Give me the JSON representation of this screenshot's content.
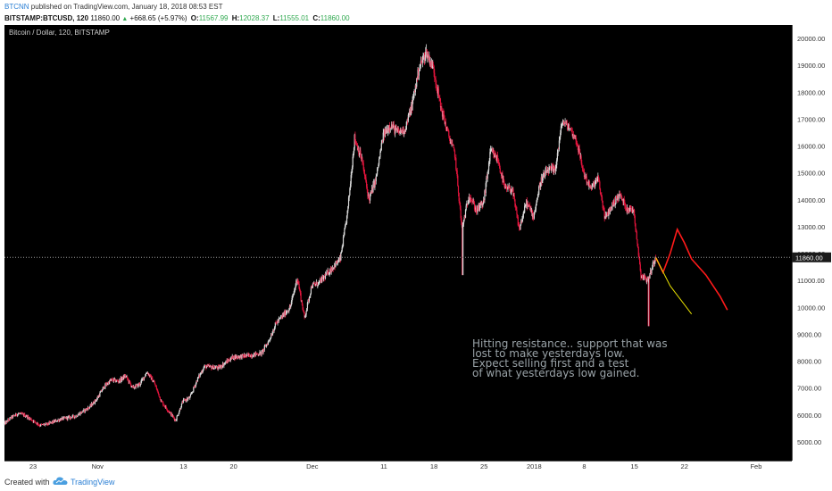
{
  "header": {
    "author": "BTCNN",
    "published_text": "published on TradingView.com, January 18, 2018 08:53 EST",
    "symbol": "BITSTAMP:BTCUSD, 120",
    "last": "11860.00",
    "change_arrow": "▲",
    "change": "+668.65 (+5.97%)",
    "open_label": "O:",
    "open": "11567.99",
    "high_label": "H:",
    "high": "12028.37",
    "low_label": "L:",
    "low": "11555.01",
    "close_label": "C:",
    "close": "11860.00"
  },
  "footer": {
    "created_with": "Created with",
    "brand": "TradingView"
  },
  "colors": {
    "background": "#000000",
    "up": "#d9d9d9",
    "down": "#e2143c",
    "price_line": "#9a9a9a",
    "projection_red": "#ff1a1a",
    "projection_yellow": "#e8e000",
    "annotation_text": "#9aa3a8",
    "axis_text": "#333333"
  },
  "chart_data": {
    "type": "candlestick",
    "title": "Bitcoin / Dollar, 120, BITSTAMP",
    "y_ticks": [
      "20000.00",
      "19000.00",
      "18000.00",
      "17000.00",
      "16000.00",
      "15000.00",
      "14000.00",
      "13000.00",
      "12000.00",
      "11000.00",
      "10000.00",
      "9000.00",
      "8000.00",
      "7000.00",
      "6000.00",
      "5000.00"
    ],
    "ylim": [
      4300,
      20500
    ],
    "x_start": "2017-10-19",
    "x_end": "2018-02-06",
    "x_ticks": [
      {
        "label": "23",
        "date": "2017-10-23"
      },
      {
        "label": "Nov",
        "date": "2017-11-01"
      },
      {
        "label": "13",
        "date": "2017-11-13"
      },
      {
        "label": "20",
        "date": "2017-11-20"
      },
      {
        "label": "Dec",
        "date": "2017-12-01"
      },
      {
        "label": "11",
        "date": "2017-12-11"
      },
      {
        "label": "18",
        "date": "2017-12-18"
      },
      {
        "label": "25",
        "date": "2017-12-25"
      },
      {
        "label": "2018",
        "date": "2018-01-01"
      },
      {
        "label": "8",
        "date": "2018-01-08"
      },
      {
        "label": "15",
        "date": "2018-01-15"
      },
      {
        "label": "22",
        "date": "2018-01-22"
      },
      {
        "label": "Feb",
        "date": "2018-02-01"
      }
    ],
    "price_path": [
      [
        "2017-10-19",
        5650
      ],
      [
        "2017-10-20",
        5900
      ],
      [
        "2017-10-21",
        6050
      ],
      [
        "2017-10-22",
        5980
      ],
      [
        "2017-10-23",
        5800
      ],
      [
        "2017-10-24",
        5620
      ],
      [
        "2017-10-25",
        5650
      ],
      [
        "2017-10-27",
        5850
      ],
      [
        "2017-10-29",
        5950
      ],
      [
        "2017-10-31",
        6300
      ],
      [
        "2017-11-01",
        6600
      ],
      [
        "2017-11-02",
        7050
      ],
      [
        "2017-11-03",
        7300
      ],
      [
        "2017-11-04",
        7250
      ],
      [
        "2017-11-05",
        7450
      ],
      [
        "2017-11-06",
        7000
      ],
      [
        "2017-11-07",
        7150
      ],
      [
        "2017-11-08",
        7600
      ],
      [
        "2017-11-09",
        7200
      ],
      [
        "2017-11-10",
        6500
      ],
      [
        "2017-11-11",
        6150
      ],
      [
        "2017-11-12",
        5800
      ],
      [
        "2017-11-13",
        6500
      ],
      [
        "2017-11-14",
        6650
      ],
      [
        "2017-11-15",
        7300
      ],
      [
        "2017-11-16",
        7800
      ],
      [
        "2017-11-18",
        7750
      ],
      [
        "2017-11-20",
        8150
      ],
      [
        "2017-11-22",
        8200
      ],
      [
        "2017-11-24",
        8300
      ],
      [
        "2017-11-25",
        8750
      ],
      [
        "2017-11-26",
        9400
      ],
      [
        "2017-11-27",
        9700
      ],
      [
        "2017-11-28",
        10000
      ],
      [
        "2017-11-29",
        11100
      ],
      [
        "2017-11-30",
        9600
      ],
      [
        "2017-12-01",
        10800
      ],
      [
        "2017-12-02",
        10900
      ],
      [
        "2017-12-03",
        11200
      ],
      [
        "2017-12-04",
        11500
      ],
      [
        "2017-12-05",
        11800
      ],
      [
        "2017-12-06",
        13500
      ],
      [
        "2017-12-07",
        16300
      ],
      [
        "2017-12-08",
        15500
      ],
      [
        "2017-12-09",
        14000
      ],
      [
        "2017-12-10",
        14800
      ],
      [
        "2017-12-11",
        16400
      ],
      [
        "2017-12-12",
        16800
      ],
      [
        "2017-12-13",
        16500
      ],
      [
        "2017-12-14",
        16600
      ],
      [
        "2017-12-15",
        17500
      ],
      [
        "2017-12-16",
        18900
      ],
      [
        "2017-12-17",
        19500
      ],
      [
        "2017-12-18",
        18900
      ],
      [
        "2017-12-19",
        17500
      ],
      [
        "2017-12-20",
        16500
      ],
      [
        "2017-12-21",
        15700
      ],
      [
        "2017-12-22",
        12900
      ],
      [
        "2017-12-23",
        14200
      ],
      [
        "2017-12-24",
        13600
      ],
      [
        "2017-12-25",
        13900
      ],
      [
        "2017-12-26",
        15800
      ],
      [
        "2017-12-27",
        15500
      ],
      [
        "2017-12-28",
        14400
      ],
      [
        "2017-12-29",
        14400
      ],
      [
        "2017-12-30",
        12900
      ],
      [
        "2017-12-31",
        13900
      ],
      [
        "2018-01-01",
        13400
      ],
      [
        "2018-01-02",
        14700
      ],
      [
        "2018-01-03",
        15100
      ],
      [
        "2018-01-04",
        15100
      ],
      [
        "2018-01-05",
        16900
      ],
      [
        "2018-01-06",
        16700
      ],
      [
        "2018-01-07",
        16200
      ],
      [
        "2018-01-08",
        15000
      ],
      [
        "2018-01-09",
        14400
      ],
      [
        "2018-01-10",
        14800
      ],
      [
        "2018-01-11",
        13300
      ],
      [
        "2018-01-12",
        13800
      ],
      [
        "2018-01-13",
        14200
      ],
      [
        "2018-01-14",
        13700
      ],
      [
        "2018-01-15",
        13600
      ],
      [
        "2018-01-16",
        11200
      ],
      [
        "2018-01-17",
        11000
      ],
      [
        "2018-01-18",
        11860
      ]
    ],
    "wick_low": {
      "date": "2017-12-22",
      "value": 11200
    },
    "crash_low": {
      "date": "2018-01-17",
      "value": 9300
    },
    "last_price": 11860,
    "last_price_label": "11860.00",
    "projections": [
      {
        "color": "red",
        "points": [
          [
            "2018-01-18",
            11850
          ],
          [
            "2018-01-19",
            11300
          ],
          [
            "2018-01-20",
            12000
          ],
          [
            "2018-01-21",
            12900
          ],
          [
            "2018-01-22",
            12400
          ],
          [
            "2018-01-23",
            11800
          ],
          [
            "2018-01-25",
            11200
          ],
          [
            "2018-01-27",
            10400
          ],
          [
            "2018-01-28",
            9900
          ]
        ]
      },
      {
        "color": "yellow",
        "points": [
          [
            "2018-01-18",
            11850
          ],
          [
            "2018-01-20",
            10800
          ],
          [
            "2018-01-23",
            9750
          ]
        ]
      }
    ],
    "annotation_lines": [
      "Hitting resistance.. support that was",
      " lost to make yesterdays low.",
      "Expect selling first and a test",
      "of what yesterdays low gained."
    ],
    "grid": false
  }
}
